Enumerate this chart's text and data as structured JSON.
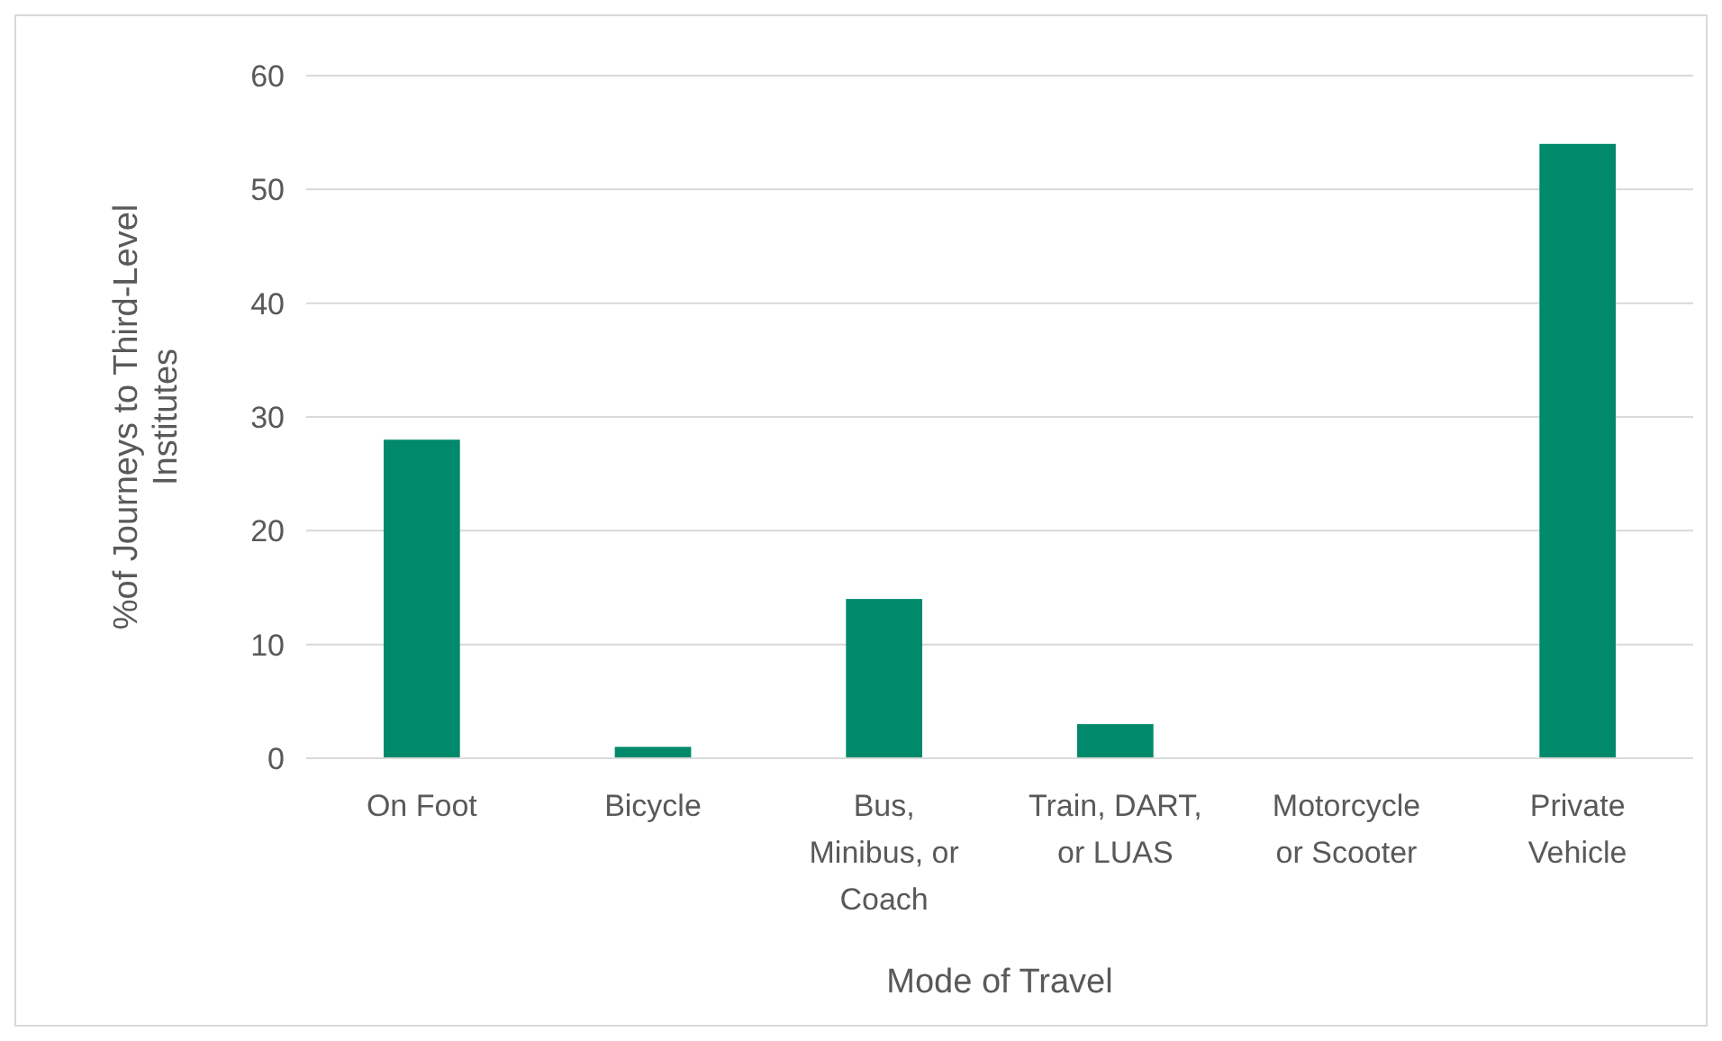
{
  "chart_data": {
    "type": "bar",
    "xlabel": "Mode of Travel",
    "ylabel": "%of Journeys to Third-Level Institutes",
    "categories": [
      "On Foot",
      "Bicycle",
      "Bus, Minibus, or Coach",
      "Train, DART, or LUAS",
      "Motorcycle or Scooter",
      "Private Vehicle"
    ],
    "values": [
      28,
      1,
      14,
      3,
      0,
      54
    ],
    "color": "#00896a",
    "ylim": [
      0,
      60
    ],
    "yticks": [
      0,
      10,
      20,
      30,
      40,
      50,
      60
    ],
    "grid": "y"
  }
}
